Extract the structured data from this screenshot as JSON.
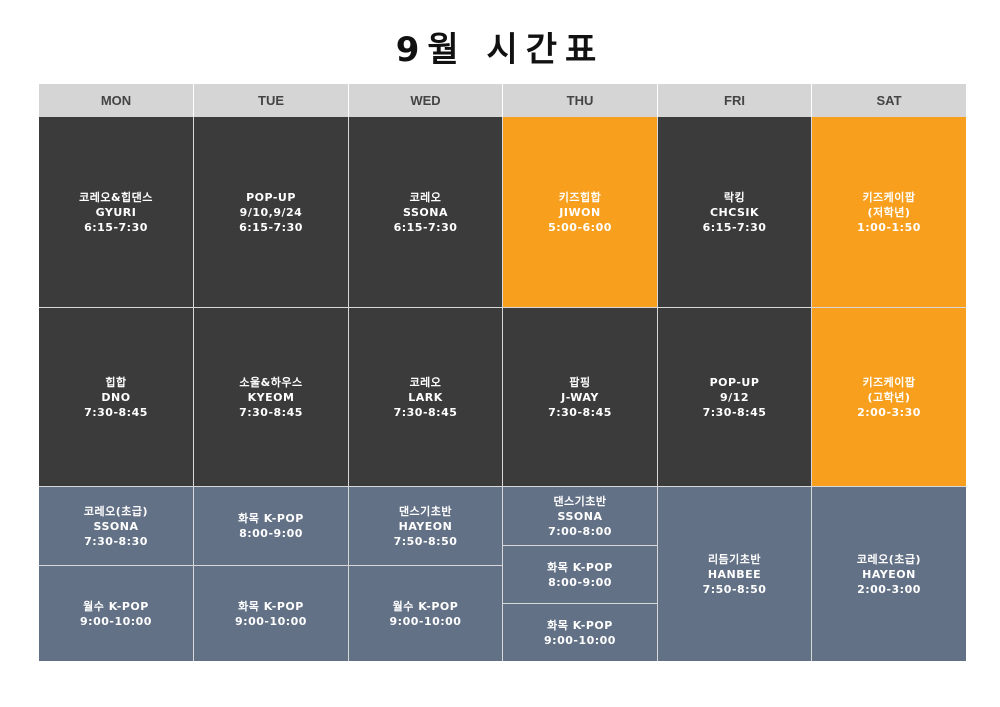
{
  "title": "9월 시간표",
  "days": [
    "MON",
    "TUE",
    "WED",
    "THU",
    "FRI",
    "SAT"
  ],
  "classes": {
    "mon1": [
      "코레오&힙댄스",
      "GYURI",
      "6:15-7:30"
    ],
    "tue1": [
      "POP-UP",
      "9/10,9/24",
      "6:15-7:30"
    ],
    "wed1": [
      "코레오",
      "SSONA",
      "6:15-7:30"
    ],
    "thu1": [
      "키즈힙합",
      "JIWON",
      "5:00-6:00"
    ],
    "fri1": [
      "락킹",
      "CHCSIK",
      "6:15-7:30"
    ],
    "sat1": [
      "키즈케이팝",
      "(저학년)",
      "1:00-1:50"
    ],
    "mon2": [
      "힙합",
      "DNO",
      "7:30-8:45"
    ],
    "tue2": [
      "소울&하우스",
      "KYEOM",
      "7:30-8:45"
    ],
    "wed2": [
      "코레오",
      "LARK",
      "7:30-8:45"
    ],
    "thu2": [
      "팝핑",
      "J-WAY",
      "7:30-8:45"
    ],
    "fri2": [
      "POP-UP",
      "9/12",
      "7:30-8:45"
    ],
    "sat2": [
      "키즈케이팝",
      "(고학년)",
      "2:00-3:30"
    ],
    "mon3": [
      "코레오(초급)",
      "SSONA",
      "7:30-8:30"
    ],
    "tue3": [
      "화목 K-POP",
      "8:00-9:00"
    ],
    "wed3": [
      "댄스기초반",
      "HAYEON",
      "7:50-8:50"
    ],
    "thu3": [
      "댄스기초반",
      "SSONA",
      "7:00-8:00"
    ],
    "thu4": [
      "화목 K-POP",
      "8:00-9:00"
    ],
    "fri3": [
      "리듬기초반",
      "HANBEE",
      "7:50-8:50"
    ],
    "sat3": [
      "코레오(초급)",
      "HAYEON",
      "2:00-3:00"
    ],
    "mon4": [
      "월수 K-POP",
      "9:00-10:00"
    ],
    "tue4": [
      "화목 K-POP",
      "9:00-10:00"
    ],
    "wed4": [
      "월수 K-POP",
      "9:00-10:00"
    ],
    "thu5": [
      "화목 K-POP",
      "9:00-10:00"
    ]
  },
  "colors": {
    "dark": "#3b3b3b",
    "orange": "#f8a01e",
    "slate": "#637186",
    "header": "#d5d5d5"
  }
}
